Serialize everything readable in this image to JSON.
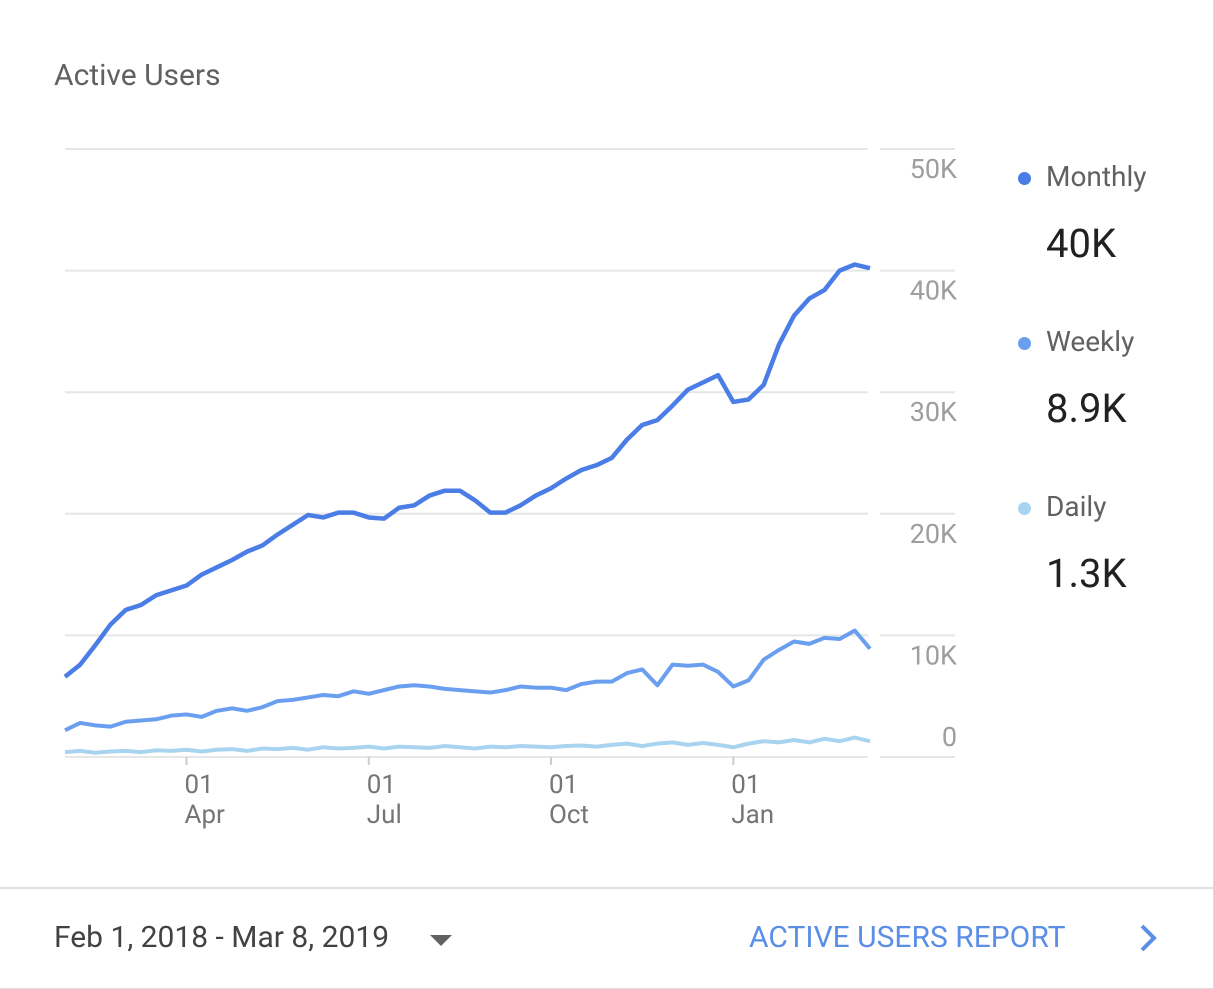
{
  "chart_data": {
    "type": "line",
    "title": "Active Users",
    "categories": [
      null,
      null,
      null,
      null,
      null,
      null,
      null,
      null,
      "01 Apr",
      null,
      null,
      null,
      null,
      null,
      null,
      null,
      null,
      null,
      null,
      null,
      "01 Jul",
      null,
      null,
      null,
      null,
      null,
      null,
      null,
      null,
      null,
      null,
      null,
      "01 Oct",
      null,
      null,
      null,
      null,
      null,
      null,
      null,
      null,
      null,
      null,
      null,
      "01 Jan",
      null,
      null,
      null,
      null,
      null,
      null,
      null,
      null,
      null
    ],
    "series": [
      {
        "name": "Monthly",
        "color": "#4a7de6",
        "summary": "40K",
        "values": [
          6600,
          7600,
          9200,
          10900,
          12100,
          12500,
          13300,
          13700,
          14100,
          15000,
          15600,
          16200,
          16900,
          17400,
          18300,
          19100,
          19900,
          19700,
          20100,
          20100,
          19700,
          19600,
          20500,
          20700,
          21500,
          21900,
          21900,
          21100,
          20100,
          20100,
          20700,
          21500,
          22100,
          22900,
          23600,
          24000,
          24600,
          26100,
          27300,
          27700,
          28900,
          30200,
          30800,
          31400,
          29200,
          29400,
          30600,
          33900,
          36300,
          37700,
          38400,
          40000,
          40500,
          40200
        ]
      },
      {
        "name": "Weekly",
        "color": "#6a9ff0",
        "summary": "8.9K",
        "values": [
          2200,
          2800,
          2600,
          2500,
          2900,
          3000,
          3100,
          3400,
          3500,
          3300,
          3800,
          4000,
          3800,
          4100,
          4600,
          4700,
          4900,
          5100,
          5000,
          5400,
          5200,
          5500,
          5800,
          5900,
          5800,
          5600,
          5500,
          5400,
          5300,
          5500,
          5800,
          5700,
          5700,
          5500,
          6000,
          6200,
          6200,
          6900,
          7200,
          5900,
          7600,
          7500,
          7600,
          7000,
          5800,
          6300,
          8000,
          8800,
          9500,
          9300,
          9800,
          9700,
          10400,
          8900
        ]
      },
      {
        "name": "Daily",
        "color": "#a8d4ef",
        "summary": "1.3K",
        "values": [
          400,
          500,
          350,
          450,
          500,
          400,
          550,
          500,
          600,
          450,
          600,
          650,
          500,
          700,
          650,
          750,
          600,
          800,
          700,
          750,
          850,
          700,
          850,
          800,
          750,
          900,
          800,
          700,
          850,
          800,
          900,
          850,
          800,
          900,
          950,
          850,
          1000,
          1100,
          900,
          1100,
          1200,
          1000,
          1150,
          1000,
          800,
          1100,
          1300,
          1200,
          1400,
          1200,
          1500,
          1300,
          1600,
          1300
        ]
      }
    ],
    "ylim": [
      0,
      50000
    ],
    "yticks": [
      0,
      {
        "value": 10000,
        "label": "10K"
      },
      {
        "value": 20000,
        "label": "20K"
      },
      {
        "value": 30000,
        "label": "30K"
      },
      {
        "value": 40000,
        "label": "40K"
      },
      {
        "value": 50000,
        "label": "50K"
      }
    ],
    "grid": true
  },
  "footer": {
    "date_range": "Feb 1, 2018 - Mar 8, 2019",
    "link": "ACTIVE USERS REPORT"
  }
}
